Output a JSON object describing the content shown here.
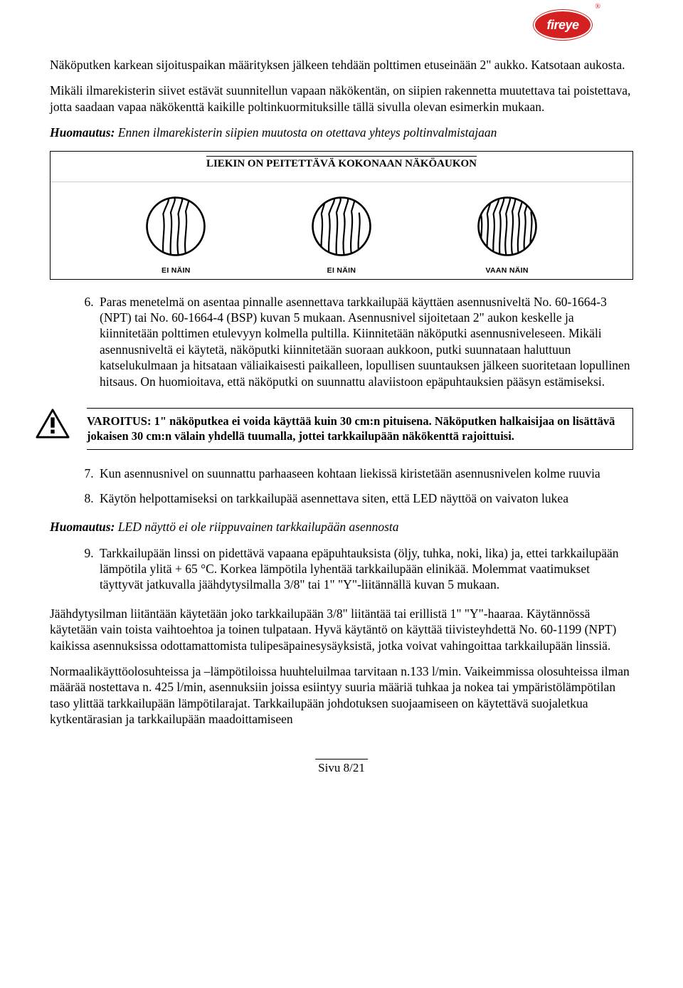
{
  "logo": {
    "text": "fireye",
    "brand_color": "#d42020",
    "text_color": "#ffffff"
  },
  "para1": "Näköputken karkean sijoituspaikan määrityksen jälkeen tehdään polttimen etuseinään 2\" aukko. Katsotaan aukosta.",
  "para2": "Mikäli ilmarekisterin siivet estävät suunnitellun vapaan näkökentän, on siipien rakennetta muutettava tai poistettava, jotta saadaan vapaa näkökenttä kaikille poltinkuormituksille tällä sivulla olevan esimerkin mukaan.",
  "note1_prefix": "Huomautus:",
  "note1_body": " Ennen ilmarekisterin siipien muutosta on otettava yhteys poltinvalmistajaan",
  "figure": {
    "heading": "LIEKIN ON PEITETTÄVÄ KOKONAAN NÄKÖAUKON",
    "labels": [
      "EI NÄIN",
      "EI NÄIN",
      "VAAN NÄIN"
    ],
    "fills": [
      0.55,
      0.8,
      1.0
    ],
    "border_color": "#000000"
  },
  "list1_start": 6,
  "list1": [
    "Paras menetelmä on asentaa pinnalle asennettava tarkkailupää käyttäen asennusniveltä No. 60-1664-3 (NPT) tai No. 60-1664-4 (BSP) kuvan 5 mukaan. Asennusnivel sijoitetaan 2\" aukon keskelle ja kiinnitetään polttimen etulevyyn kolmella pultilla. Kiinnitetään näköputki asennusniveleseen. Mikäli asennusniveltä ei käytetä, näköputki kiinnitetään suoraan aukkoon, putki suunnataan haluttuun katselukulmaan ja hitsataan väliaikaisesti paikalleen, lopullisen suuntauksen jälkeen suoritetaan lopullinen hitsaus. On huomioitava, että näköputki on suunnattu alaviistoon epäpuhtauksien pääsyn estämiseksi."
  ],
  "warning": "VAROITUS:  1\" näköputkea ei voida käyttää kuin 30 cm:n pituisena. Näköputken halkaisijaa on lisättävä jokaisen 30 cm:n välain yhdellä tuumalla, jottei tarkkailupään näkökenttä rajoittuisi.",
  "list2_start": 7,
  "list2": [
    "Kun asennusnivel on suunnattu parhaaseen kohtaan liekissä kiristetään asennusnivelen kolme ruuvia",
    "Käytön helpottamiseksi on tarkkailupää asennettava siten, että LED näyttöä on vaivaton lukea"
  ],
  "note2_prefix": "Huomautus:",
  "note2_body": " LED näyttö ei ole riippuvainen tarkkailupään asennosta",
  "list3_start": 9,
  "list3": [
    "Tarkkailupään linssi on pidettävä vapaana epäpuhtauksista (öljy, tuhka, noki, lika) ja, ettei tarkkailupään lämpötila ylitä + 65 °C. Korkea lämpötila lyhentää tarkkailupään elinikää. Molemmat vaatimukset täyttyvät jatkuvalla jäähdytysilmalla 3/8\" tai 1\" \"Y\"-liitännällä kuvan 5 mukaan."
  ],
  "para3": "Jäähdytysilman liitäntään käytetään joko tarkkailupään 3/8\" liitäntää tai erillistä 1\" \"Y\"-haaraa. Käytännössä käytetään vain toista vaihtoehtoa ja toinen tulpataan. Hyvä käytäntö on käyttää tiivisteyhdettä No. 60-1199 (NPT) kaikissa asennuksissa odottamattomista tulipesäpainesysäyksistä, jotka voivat vahingoittaa tarkkailupään linssiä.",
  "para4": "Normaalikäyttöolosuhteissa ja –lämpötiloissa huuhteluilmaa tarvitaan n.133 l/min. Vaikeimmissa olosuhteissa ilman määrää nostettava n. 425 l/min, asennuksiin joissa esiintyy suuria määriä tuhkaa ja nokea tai ympäristölämpötilan taso ylittää tarkkailupään lämpötilarajat. Tarkkailupään johdotuksen suojaamiseen on käytettävä suojaletkua kytkentärasian ja tarkkailupään maadoittamiseen",
  "footer": "Sivu 8/21"
}
